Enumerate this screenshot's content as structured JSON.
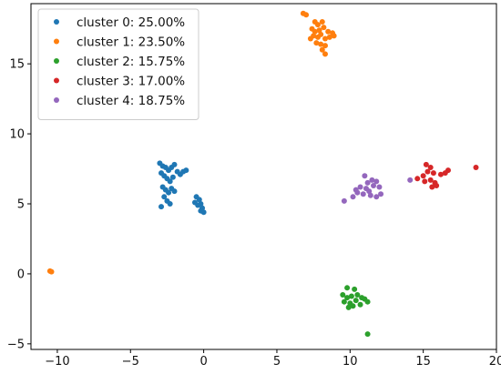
{
  "chart_data": {
    "type": "scatter",
    "title": "",
    "xlabel": "",
    "ylabel": "",
    "xlim": [
      -11.8,
      20.0
    ],
    "ylim": [
      -5.4,
      19.3
    ],
    "xticks": [
      -10,
      -5,
      0,
      5,
      10,
      15,
      20
    ],
    "yticks": [
      -5,
      0,
      5,
      10,
      15
    ],
    "grid": false,
    "legend_position": "top-left",
    "series": [
      {
        "name": "cluster 0: 25.00%",
        "color": "#1f77b4",
        "points": [
          [
            -3.0,
            7.9
          ],
          [
            -2.8,
            7.7
          ],
          [
            -2.6,
            7.6
          ],
          [
            -2.4,
            7.4
          ],
          [
            -2.2,
            7.6
          ],
          [
            -2.0,
            7.8
          ],
          [
            -1.8,
            7.3
          ],
          [
            -1.6,
            7.1
          ],
          [
            -1.4,
            7.3
          ],
          [
            -1.2,
            7.4
          ],
          [
            -2.9,
            7.2
          ],
          [
            -2.7,
            7.0
          ],
          [
            -2.5,
            6.8
          ],
          [
            -2.3,
            6.6
          ],
          [
            -2.1,
            6.9
          ],
          [
            -2.8,
            6.2
          ],
          [
            -2.6,
            6.0
          ],
          [
            -2.4,
            5.8
          ],
          [
            -2.2,
            6.1
          ],
          [
            -2.0,
            5.9
          ],
          [
            -2.7,
            5.5
          ],
          [
            -2.5,
            5.2
          ],
          [
            -2.9,
            4.8
          ],
          [
            -2.3,
            5.0
          ],
          [
            -0.5,
            5.5
          ],
          [
            -0.3,
            5.3
          ],
          [
            -0.2,
            5.0
          ],
          [
            -0.1,
            4.7
          ],
          [
            0.0,
            4.4
          ],
          [
            -0.4,
            4.9
          ],
          [
            -0.6,
            5.1
          ],
          [
            -0.2,
            4.5
          ]
        ]
      },
      {
        "name": "cluster 1: 23.50%",
        "color": "#ff7f0e",
        "points": [
          [
            6.8,
            18.6
          ],
          [
            7.0,
            18.5
          ],
          [
            7.6,
            18.0
          ],
          [
            7.8,
            17.8
          ],
          [
            8.1,
            18.0
          ],
          [
            7.4,
            17.5
          ],
          [
            7.6,
            17.3
          ],
          [
            7.9,
            17.4
          ],
          [
            8.2,
            17.6
          ],
          [
            8.5,
            17.3
          ],
          [
            8.8,
            17.2
          ],
          [
            7.5,
            17.0
          ],
          [
            7.8,
            16.9
          ],
          [
            8.0,
            17.1
          ],
          [
            8.3,
            16.8
          ],
          [
            8.6,
            16.9
          ],
          [
            7.7,
            16.5
          ],
          [
            8.0,
            16.4
          ],
          [
            8.3,
            16.3
          ],
          [
            8.1,
            16.0
          ],
          [
            8.3,
            15.7
          ],
          [
            8.9,
            17.0
          ],
          [
            7.3,
            16.8
          ],
          [
            -10.5,
            0.2
          ],
          [
            -10.4,
            0.15
          ]
        ]
      },
      {
        "name": "cluster 2: 15.75%",
        "color": "#2ca02c",
        "points": [
          [
            9.8,
            -1.0
          ],
          [
            10.3,
            -1.1
          ],
          [
            9.5,
            -1.5
          ],
          [
            9.8,
            -1.7
          ],
          [
            10.1,
            -1.6
          ],
          [
            10.5,
            -1.5
          ],
          [
            10.8,
            -1.7
          ],
          [
            9.6,
            -2.0
          ],
          [
            10.0,
            -2.1
          ],
          [
            10.4,
            -1.9
          ],
          [
            11.0,
            -1.8
          ],
          [
            11.2,
            -2.0
          ],
          [
            9.9,
            -2.4
          ],
          [
            10.7,
            -2.2
          ],
          [
            10.2,
            -2.3
          ],
          [
            11.2,
            -4.3
          ]
        ]
      },
      {
        "name": "cluster 3: 17.00%",
        "color": "#d62728",
        "points": [
          [
            15.2,
            7.8
          ],
          [
            15.5,
            7.6
          ],
          [
            15.3,
            7.3
          ],
          [
            15.7,
            7.2
          ],
          [
            16.2,
            7.1
          ],
          [
            16.5,
            7.2
          ],
          [
            16.7,
            7.4
          ],
          [
            15.0,
            7.0
          ],
          [
            14.6,
            6.8
          ],
          [
            15.1,
            6.6
          ],
          [
            15.5,
            6.7
          ],
          [
            15.8,
            6.5
          ],
          [
            15.6,
            6.2
          ],
          [
            15.9,
            6.3
          ],
          [
            18.6,
            7.6
          ]
        ]
      },
      {
        "name": "cluster 4: 18.75%",
        "color": "#9467bd",
        "points": [
          [
            11.0,
            7.0
          ],
          [
            11.5,
            6.7
          ],
          [
            11.2,
            6.5
          ],
          [
            11.8,
            6.6
          ],
          [
            10.7,
            6.2
          ],
          [
            11.1,
            6.1
          ],
          [
            11.6,
            6.3
          ],
          [
            12.0,
            6.2
          ],
          [
            10.5,
            5.8
          ],
          [
            10.9,
            5.7
          ],
          [
            11.4,
            5.6
          ],
          [
            11.8,
            5.5
          ],
          [
            12.1,
            5.7
          ],
          [
            10.2,
            5.5
          ],
          [
            9.6,
            5.2
          ],
          [
            14.1,
            6.7
          ],
          [
            10.4,
            6.0
          ],
          [
            11.3,
            5.9
          ]
        ]
      }
    ]
  }
}
